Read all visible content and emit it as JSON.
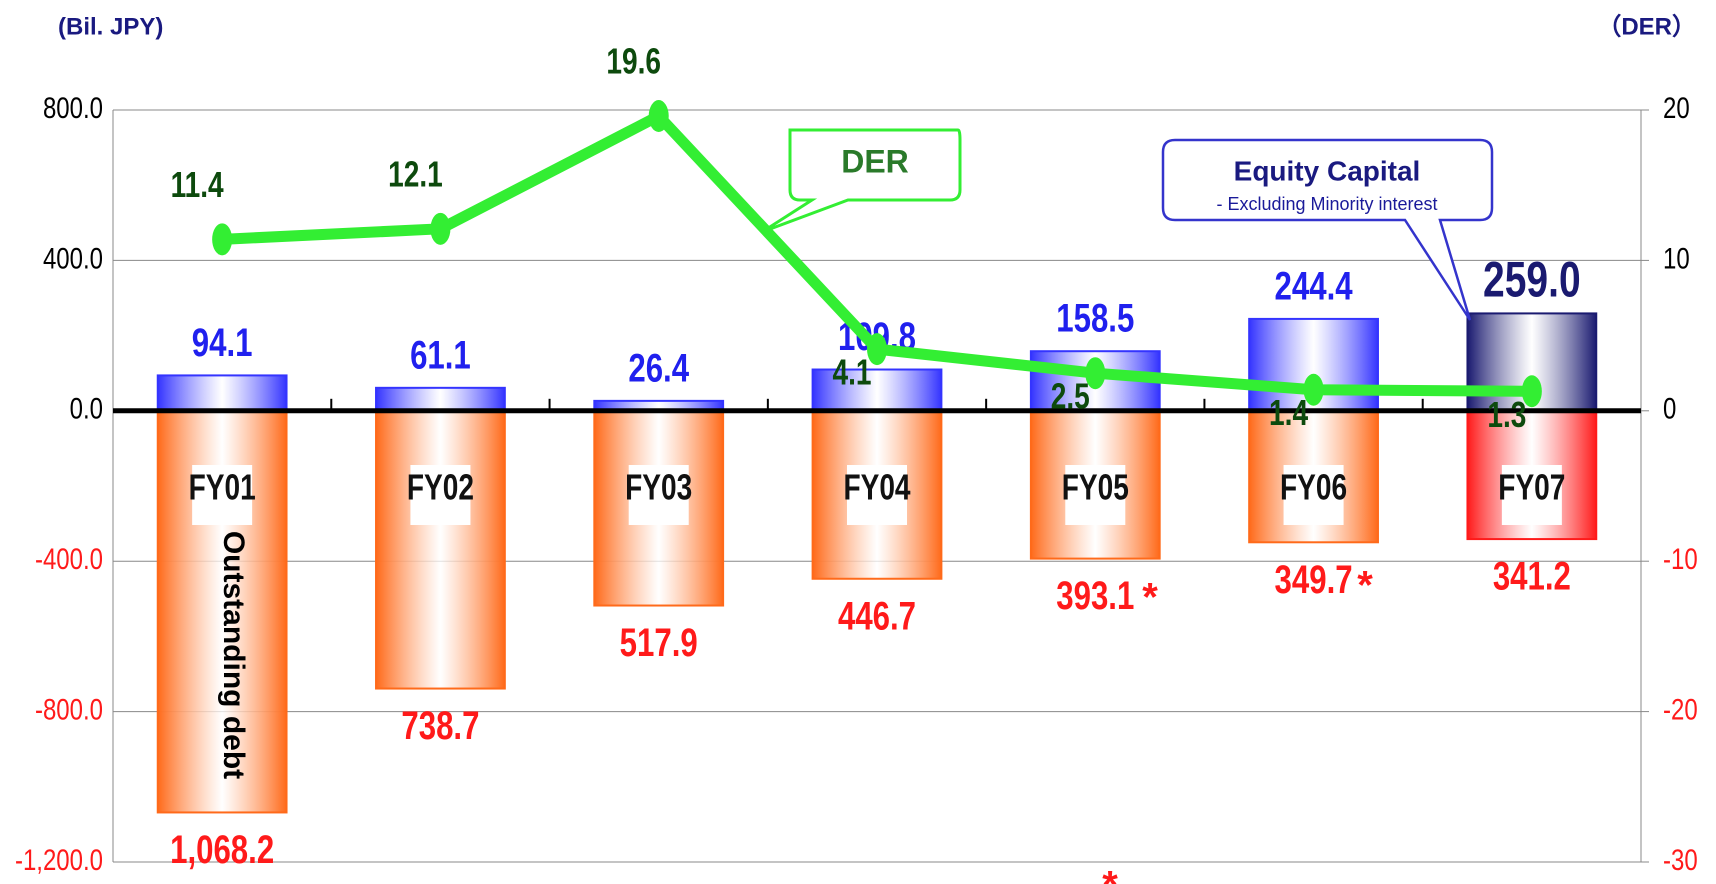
{
  "chart_data": {
    "type": "bar-line",
    "y_axis_label": "(Bil. JPY)",
    "y2_axis_label": "（DER）",
    "categories": [
      "FY01",
      "FY02",
      "FY03",
      "FY04",
      "FY05",
      "FY06",
      "FY07"
    ],
    "ylim": [
      -1200,
      800
    ],
    "yticks": [
      {
        "value": 800,
        "label": "800.0"
      },
      {
        "value": 400,
        "label": "400.0"
      },
      {
        "value": 0,
        "label": "0.0"
      },
      {
        "value": -400,
        "label": "-400.0"
      },
      {
        "value": -800,
        "label": "-800.0"
      },
      {
        "value": -1200,
        "label": "-1,200.0"
      }
    ],
    "y2lim": [
      -30,
      20
    ],
    "y2ticks": [
      20,
      10,
      0,
      -10,
      -20,
      -30
    ],
    "grid": true,
    "series": [
      {
        "name": "Equity Capital",
        "type": "bar",
        "color": "#3434ff",
        "colors": [
          "#3434ff",
          "#3434ff",
          "#3434ff",
          "#3434ff",
          "#3434ff",
          "#3434ff",
          "#1a1a70"
        ],
        "values": [
          94.1,
          61.1,
          26.4,
          109.8,
          158.5,
          244.4,
          259.0
        ],
        "value_labels": [
          "94.1",
          "61.1",
          "26.4",
          "109.8",
          "158.5",
          "244.4",
          "259.0"
        ]
      },
      {
        "name": "Outstanding debt",
        "type": "bar",
        "color": "#ff6a1a",
        "colors": [
          "#ff6a1a",
          "#ff6a1a",
          "#ff6a1a",
          "#ff6a1a",
          "#ff6a1a",
          "#ff6a1a",
          "#ff1a1a"
        ],
        "values": [
          -1068.2,
          -738.7,
          -517.9,
          -446.7,
          -393.1,
          -349.7,
          -341.2
        ],
        "value_labels": [
          "1,068.2",
          "738.7",
          "517.9",
          "446.7",
          "393.1",
          "349.7",
          "341.2"
        ]
      },
      {
        "name": "DER",
        "type": "line",
        "axis": "y2",
        "color": "#33ee33",
        "values": [
          11.4,
          12.1,
          19.6,
          4.1,
          2.5,
          1.4,
          1.3
        ]
      }
    ],
    "annotations": {
      "equity_note": "- Excluding Minority interest",
      "asterisks": [
        "*",
        "*",
        "*"
      ]
    }
  }
}
